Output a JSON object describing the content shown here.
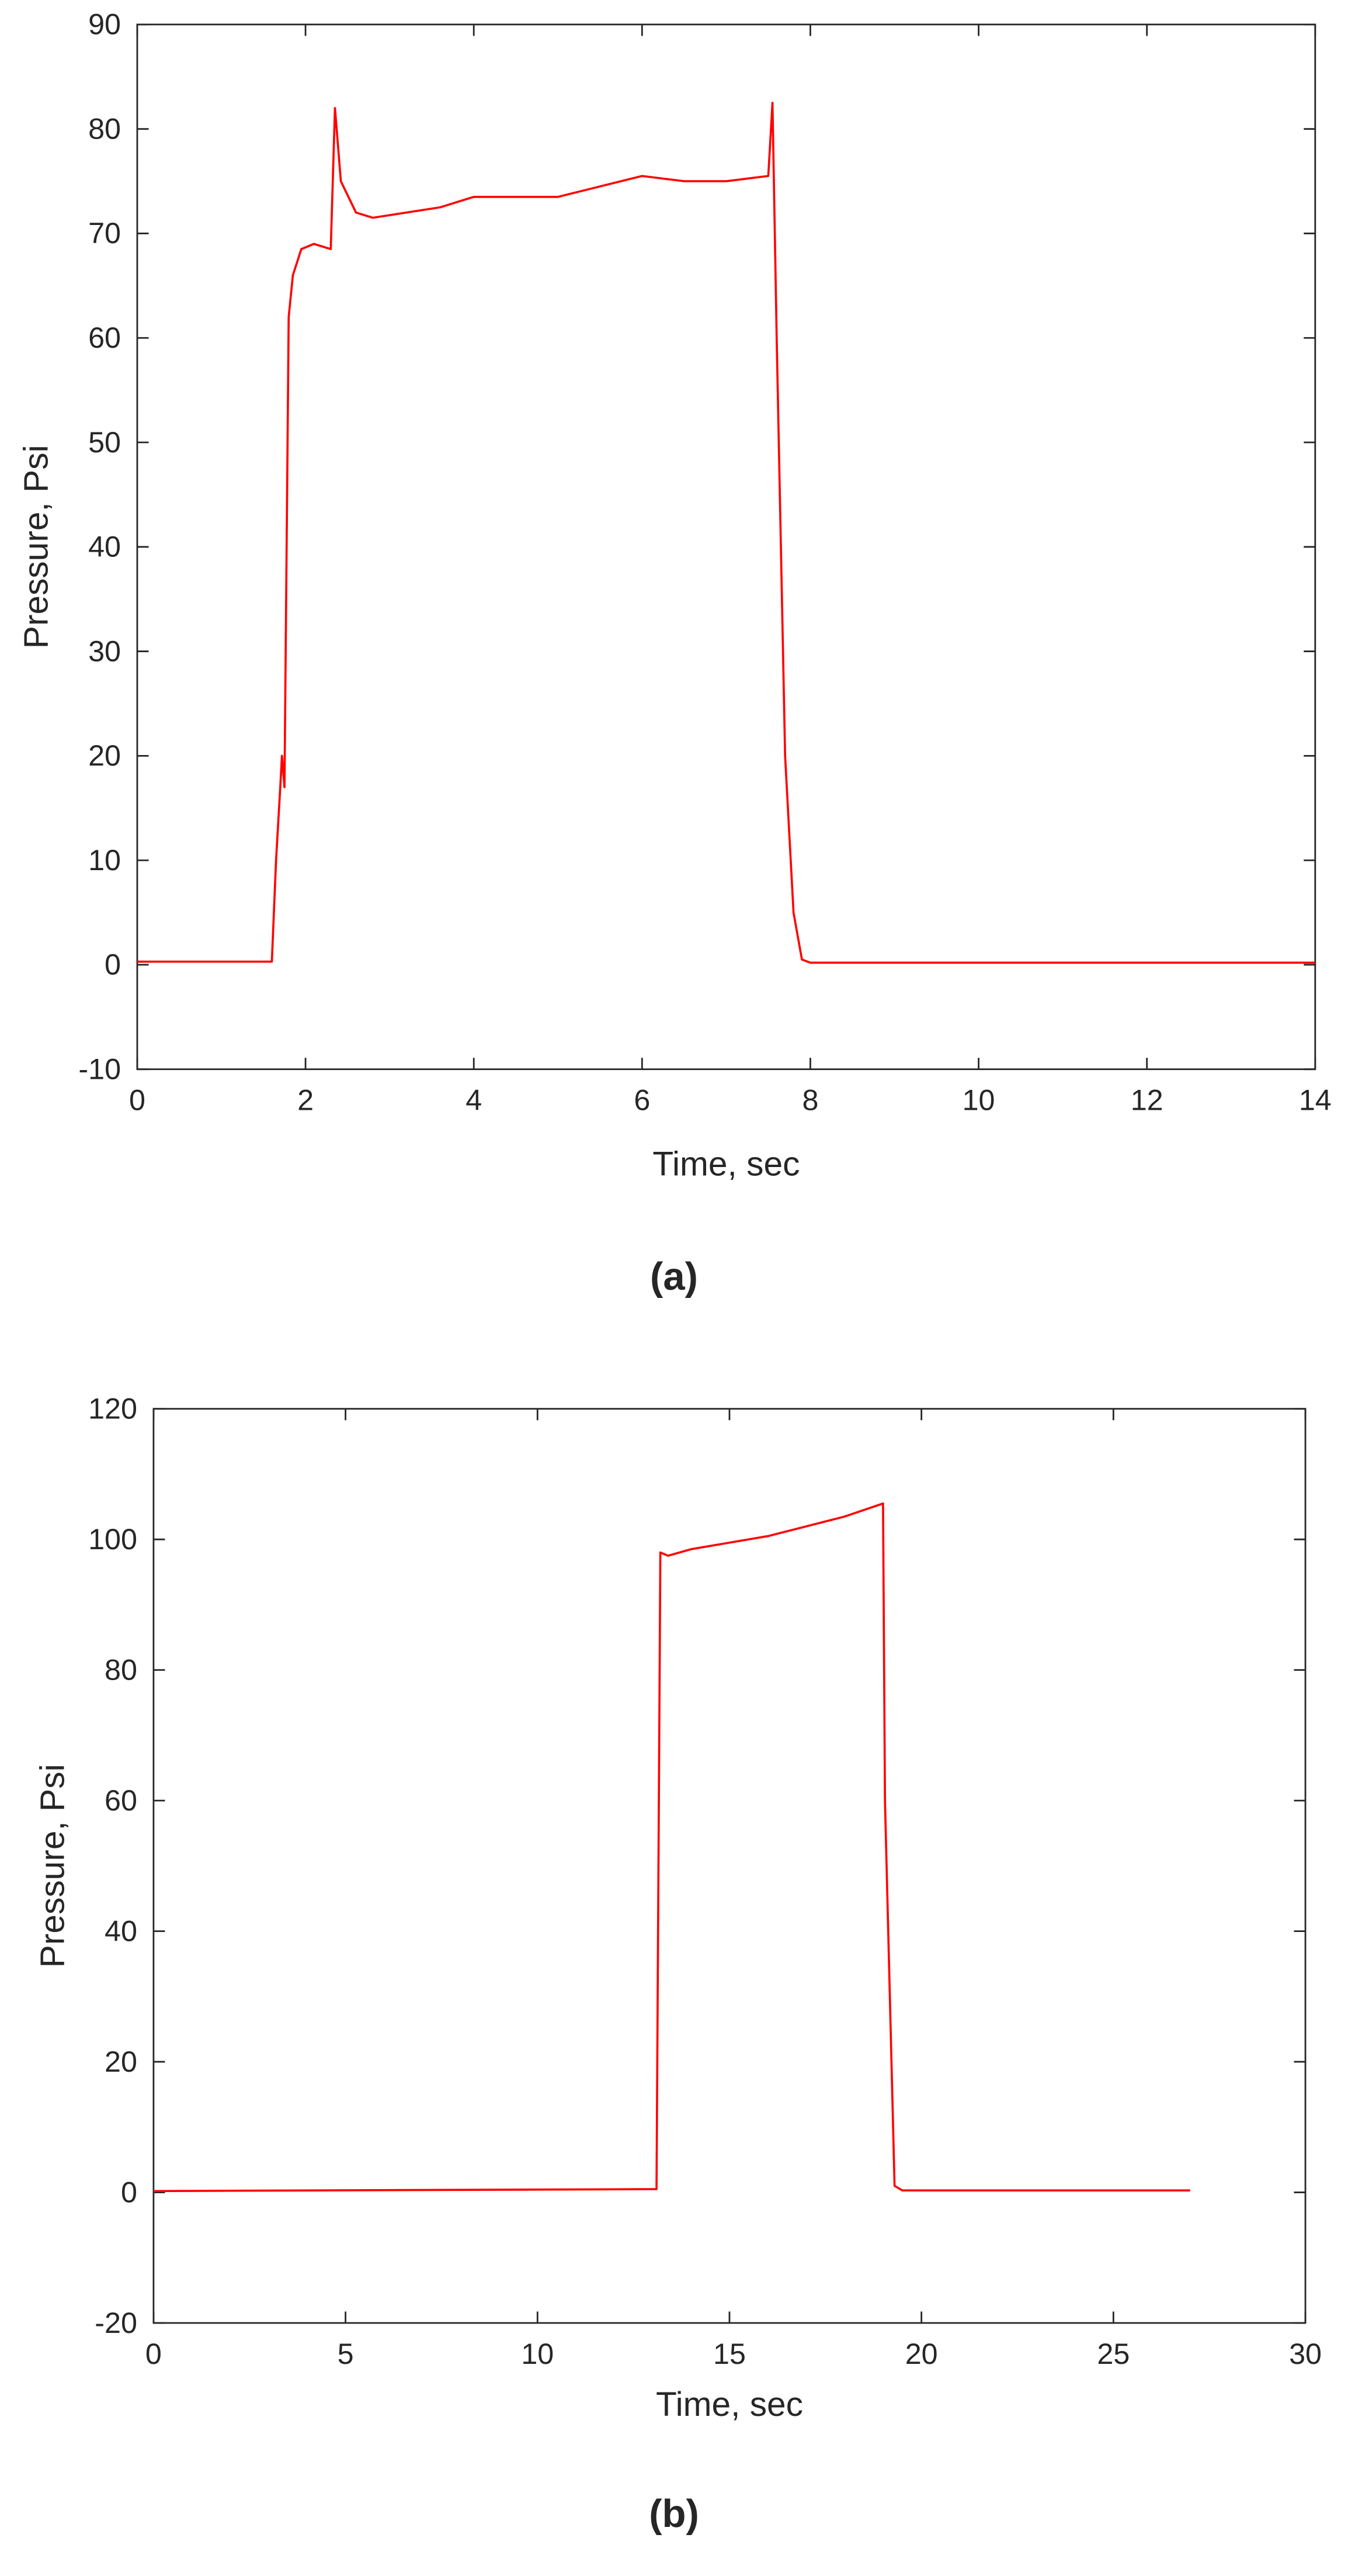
{
  "chart_data": [
    {
      "type": "line",
      "caption": "(a)",
      "xlabel": "Time, sec",
      "ylabel": "Pressure, Psi",
      "xlim": [
        0,
        14
      ],
      "ylim": [
        -10,
        90
      ],
      "xticks": [
        0,
        2,
        4,
        6,
        8,
        10,
        12,
        14
      ],
      "yticks": [
        -10,
        0,
        10,
        20,
        30,
        40,
        50,
        60,
        70,
        80,
        90
      ],
      "series": [
        {
          "color": "#ff0000",
          "x": [
            0,
            1.6,
            1.65,
            1.7,
            1.72,
            1.75,
            1.8,
            1.85,
            1.95,
            2.1,
            2.3,
            2.35,
            2.42,
            2.6,
            2.8,
            3.2,
            3.6,
            4,
            4.6,
            5,
            5.5,
            6,
            6.5,
            7,
            7.5,
            7.55,
            7.6,
            7.7,
            7.8,
            7.9,
            8,
            14
          ],
          "values": [
            0.3,
            0.3,
            10,
            17,
            20,
            17,
            62,
            66,
            68.5,
            69,
            68.5,
            82,
            75,
            72,
            71.5,
            72,
            72.5,
            73.5,
            73.5,
            73.5,
            74.5,
            75.5,
            75,
            75,
            75.5,
            82.5,
            60,
            20,
            5,
            0.5,
            0.2,
            0.2
          ]
        }
      ]
    },
    {
      "type": "line",
      "caption": "(b)",
      "xlabel": "Time, sec",
      "ylabel": "Pressure, Psi",
      "xlim": [
        0,
        30
      ],
      "ylim": [
        -20,
        120
      ],
      "xticks": [
        0,
        5,
        10,
        15,
        20,
        25,
        30
      ],
      "yticks": [
        -20,
        0,
        20,
        40,
        60,
        80,
        100,
        120
      ],
      "series": [
        {
          "color": "#ff0000",
          "x": [
            0,
            13.1,
            13.2,
            13.4,
            14,
            15,
            16,
            17,
            18,
            19,
            19.05,
            19.3,
            19.5,
            22,
            27
          ],
          "values": [
            0.2,
            0.5,
            98,
            97.5,
            98.5,
            99.5,
            100.5,
            102,
            103.5,
            105.5,
            60,
            1,
            0.3,
            0.3,
            0.3
          ]
        }
      ]
    }
  ]
}
